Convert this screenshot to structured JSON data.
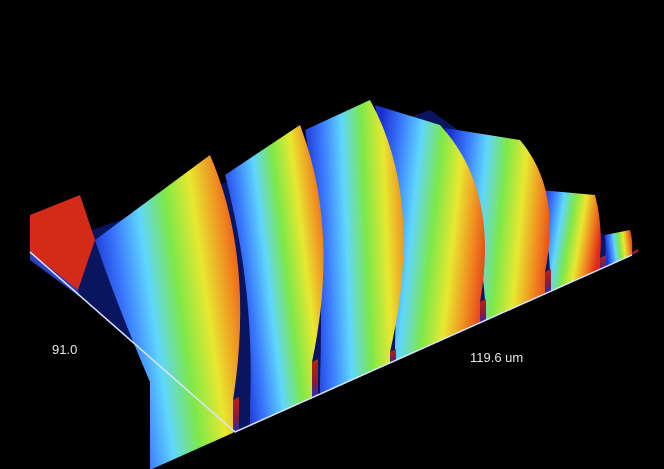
{
  "labels": {
    "y_axis_value": "91.0",
    "x_axis_value": "119.6 um"
  },
  "colormap": [
    "#1a2fd0",
    "#3c7cff",
    "#5fd6ff",
    "#7de84a",
    "#e8e830",
    "#f08a20",
    "#e02818"
  ],
  "axis_color": "#d8e4ff"
}
